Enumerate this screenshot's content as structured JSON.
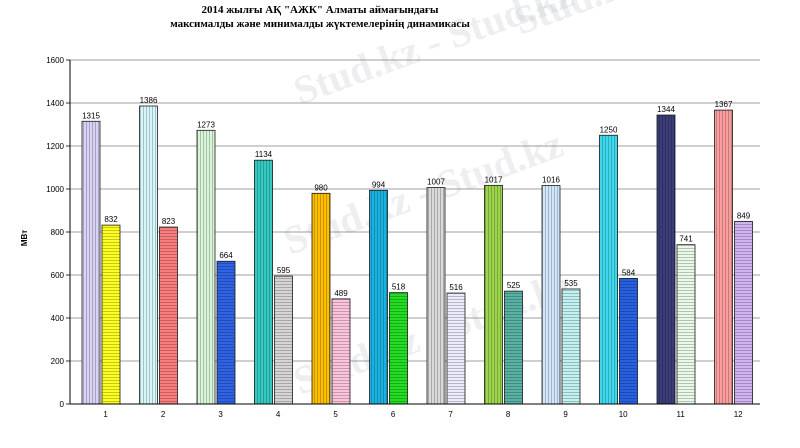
{
  "chart_data": {
    "type": "bar",
    "title": "2014 жылғы АҚ \"АЖК\" Алматы аймағындағы",
    "subtitle": "максималды және минималды жүктемелерінің динамикасы",
    "ylabel": "МВт",
    "ylim": [
      0,
      1600
    ],
    "yticks": [
      0,
      200,
      400,
      600,
      800,
      1000,
      1200,
      1400,
      1600
    ],
    "xticks": [
      "1",
      "2",
      "3",
      "4",
      "5",
      "6",
      "7",
      "8",
      "9",
      "10",
      "11",
      "12"
    ],
    "grid": true,
    "series": [
      {
        "values": [
          1315,
          1386,
          1273,
          1134,
          980,
          994,
          1007,
          1017,
          1016,
          1250,
          1344,
          1367
        ],
        "colors": [
          "#d9d2f5",
          "#d6f6fa",
          "#d8f5d8",
          "#34c9c0",
          "#ffbf00",
          "#1ab2e0",
          "#d9d9d9",
          "#9cd44c",
          "#cfe6fb",
          "#3fd9ee",
          "#3a3d7a",
          "#fc9d9d"
        ]
      },
      {
        "values": [
          832,
          823,
          664,
          595,
          489,
          518,
          516,
          525,
          535,
          584,
          741,
          849
        ],
        "colors": [
          "#ffff22",
          "#fb7c7c",
          "#2f63e6",
          "#d5d5d5",
          "#fcc3dd",
          "#22dd22",
          "#ecebfb",
          "#57b2a4",
          "#c2f1f1",
          "#2760e0",
          "#e8f9e8",
          "#d1b3f3"
        ]
      }
    ],
    "data_labels": true
  },
  "watermark": "Stud.kz - Stud.kz"
}
